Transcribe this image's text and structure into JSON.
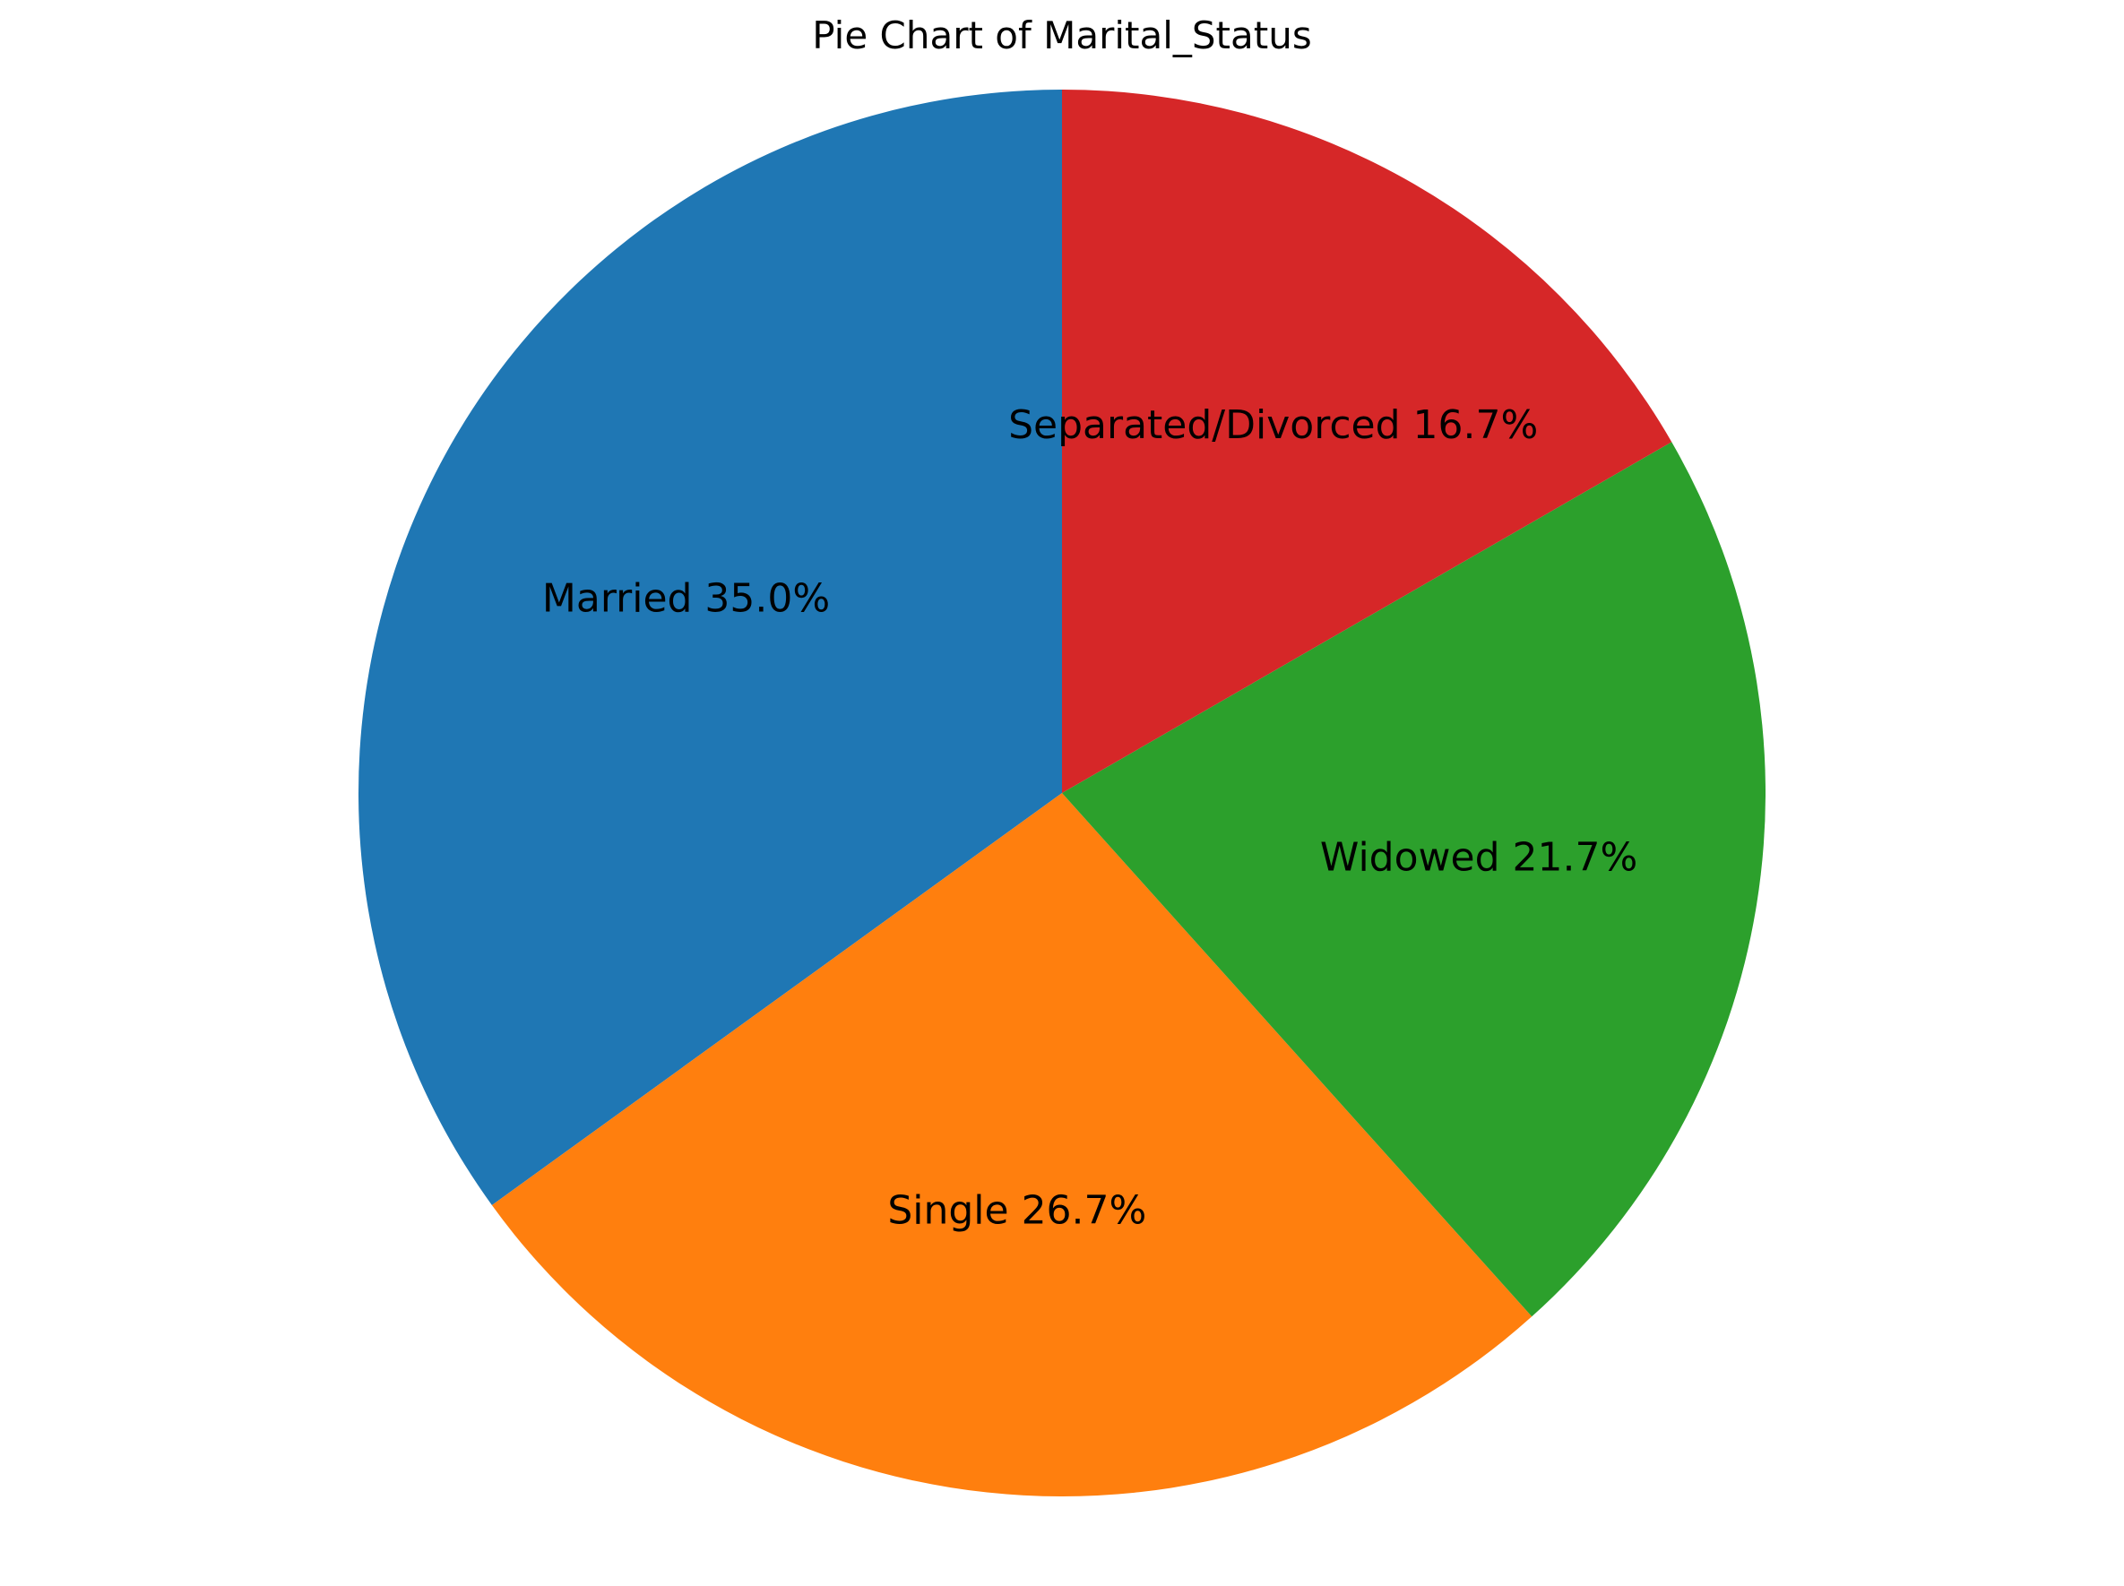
{
  "chart_data": {
    "type": "pie",
    "title": "Pie Chart of Marital_Status",
    "start_angle_deg": 90,
    "direction": "counterclockwise",
    "slices": [
      {
        "label": "Married",
        "value": 35.0,
        "pct_label": "35.0%",
        "color": "#1f77b4"
      },
      {
        "label": "Single",
        "value": 26.7,
        "pct_label": "26.7%",
        "color": "#ff7f0e"
      },
      {
        "label": "Widowed",
        "value": 21.7,
        "pct_label": "21.7%",
        "color": "#2ca02c"
      },
      {
        "label": "Separated/Divorced",
        "value": 16.7,
        "pct_label": "16.7%",
        "color": "#d62728"
      }
    ]
  }
}
